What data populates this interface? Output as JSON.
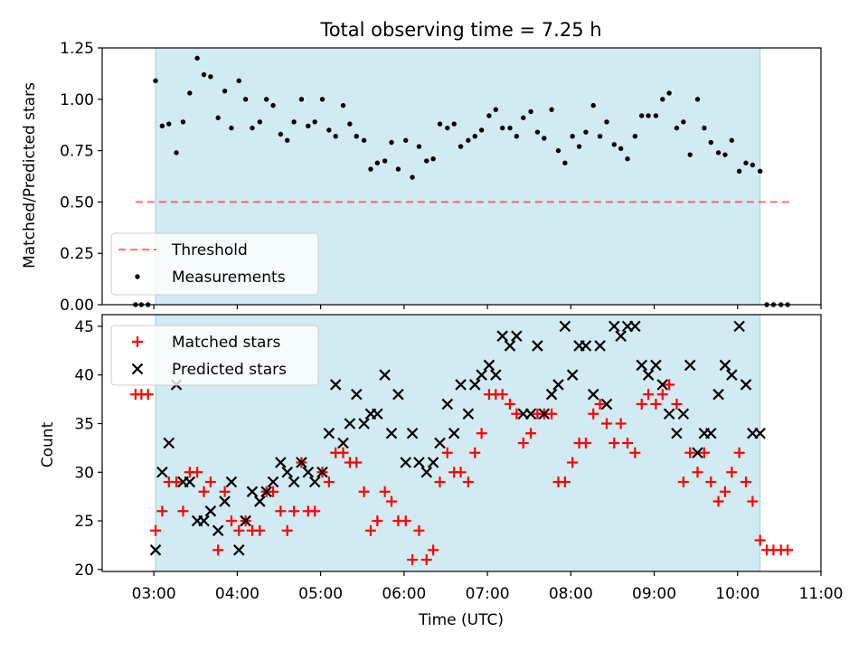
{
  "chart_data": [
    {
      "type": "scatter",
      "title": "Total observing time = 7.25 h",
      "ylabel": "Matched/Predicted stars",
      "xlabel": "",
      "xlim_hours": [
        2.38,
        11.0
      ],
      "ylim": [
        0.0,
        1.25
      ],
      "yticks": [
        "0.00",
        "0.25",
        "0.50",
        "0.75",
        "1.00",
        "1.25"
      ],
      "observing_window_hours": [
        3.02,
        10.27
      ],
      "shade_color": "#add8e6",
      "threshold": {
        "name": "Threshold",
        "value": 0.5,
        "x_range_hours": [
          2.78,
          10.62
        ],
        "color": "#ff0000"
      },
      "legend_placement": "lower-left",
      "series": [
        {
          "name": "Measurements",
          "color": "#000000",
          "x_hours": [
            2.78,
            2.85,
            2.93,
            3.02,
            3.1,
            3.18,
            3.27,
            3.35,
            3.43,
            3.52,
            3.6,
            3.68,
            3.77,
            3.85,
            3.93,
            4.02,
            4.1,
            4.18,
            4.27,
            4.35,
            4.43,
            4.52,
            4.6,
            4.68,
            4.77,
            4.85,
            4.93,
            5.02,
            5.1,
            5.18,
            5.27,
            5.35,
            5.43,
            5.52,
            5.6,
            5.68,
            5.77,
            5.85,
            5.93,
            6.02,
            6.1,
            6.18,
            6.27,
            6.35,
            6.43,
            6.52,
            6.6,
            6.68,
            6.77,
            6.85,
            6.93,
            7.02,
            7.1,
            7.18,
            7.27,
            7.35,
            7.43,
            7.52,
            7.6,
            7.68,
            7.77,
            7.85,
            7.93,
            8.02,
            8.1,
            8.18,
            8.27,
            8.35,
            8.43,
            8.52,
            8.6,
            8.68,
            8.77,
            8.85,
            8.93,
            9.02,
            9.1,
            9.18,
            9.27,
            9.35,
            9.43,
            9.52,
            9.6,
            9.68,
            9.77,
            9.85,
            9.93,
            10.02,
            10.1,
            10.18,
            10.27,
            10.35,
            10.43,
            10.52,
            10.6
          ],
          "y": [
            0.0,
            0.0,
            0.0,
            1.09,
            0.87,
            0.88,
            0.74,
            0.89,
            1.03,
            1.2,
            1.12,
            1.11,
            0.91,
            1.04,
            0.86,
            1.09,
            1.0,
            0.86,
            0.89,
            1.0,
            0.97,
            0.83,
            0.8,
            0.89,
            1.0,
            0.87,
            0.89,
            1.0,
            0.85,
            0.82,
            0.97,
            0.88,
            0.82,
            0.8,
            0.66,
            0.69,
            0.7,
            0.79,
            0.66,
            0.8,
            0.62,
            0.77,
            0.7,
            0.71,
            0.88,
            0.86,
            0.88,
            0.77,
            0.8,
            0.82,
            0.85,
            0.92,
            0.95,
            0.86,
            0.86,
            0.82,
            0.91,
            0.94,
            0.84,
            0.81,
            0.95,
            0.75,
            0.69,
            0.82,
            0.77,
            0.84,
            0.97,
            0.82,
            0.89,
            0.78,
            0.76,
            0.71,
            0.82,
            0.92,
            0.92,
            0.92,
            1.0,
            1.03,
            0.86,
            0.89,
            0.73,
            1.0,
            0.86,
            0.79,
            0.74,
            0.73,
            0.8,
            0.65,
            0.69,
            0.68,
            0.65,
            0.0,
            0.0,
            0.0,
            0.0
          ]
        }
      ]
    },
    {
      "type": "scatter",
      "title": "",
      "ylabel": "Count",
      "xlabel": "Time (UTC)",
      "xlim_hours": [
        2.38,
        11.0
      ],
      "ylim": [
        19.8,
        46.2
      ],
      "yticks": [
        "20",
        "25",
        "30",
        "35",
        "40",
        "45"
      ],
      "xticks": [
        "03:00",
        "04:00",
        "05:00",
        "06:00",
        "07:00",
        "08:00",
        "09:00",
        "10:00",
        "11:00"
      ],
      "xticks_hours": [
        3,
        4,
        5,
        6,
        7,
        8,
        9,
        10,
        11
      ],
      "observing_window_hours": [
        3.02,
        10.27
      ],
      "legend_placement": "upper-left",
      "series": [
        {
          "name": "Matched stars",
          "color": "#ff0000",
          "marker": "+",
          "x_hours": [
            2.78,
            2.85,
            2.93,
            3.02,
            3.1,
            3.18,
            3.27,
            3.35,
            3.43,
            3.52,
            3.6,
            3.68,
            3.77,
            3.85,
            3.93,
            4.02,
            4.1,
            4.18,
            4.27,
            4.35,
            4.43,
            4.52,
            4.6,
            4.68,
            4.77,
            4.85,
            4.93,
            5.02,
            5.1,
            5.18,
            5.27,
            5.35,
            5.43,
            5.52,
            5.6,
            5.68,
            5.77,
            5.85,
            5.93,
            6.02,
            6.1,
            6.18,
            6.27,
            6.35,
            6.43,
            6.52,
            6.6,
            6.68,
            6.77,
            6.85,
            6.93,
            7.02,
            7.1,
            7.18,
            7.27,
            7.35,
            7.43,
            7.52,
            7.6,
            7.68,
            7.77,
            7.85,
            7.93,
            8.02,
            8.1,
            8.18,
            8.27,
            8.35,
            8.43,
            8.52,
            8.6,
            8.68,
            8.77,
            8.85,
            8.93,
            9.02,
            9.1,
            9.18,
            9.27,
            9.35,
            9.43,
            9.52,
            9.6,
            9.68,
            9.77,
            9.85,
            9.93,
            10.02,
            10.1,
            10.18,
            10.27,
            10.35,
            10.43,
            10.52,
            10.6
          ],
          "y": [
            38,
            38,
            38,
            24,
            26,
            29,
            29,
            26,
            30,
            30,
            28,
            29,
            22,
            28,
            25,
            24,
            25,
            24,
            24,
            28,
            28,
            26,
            24,
            26,
            31,
            26,
            26,
            30,
            29,
            32,
            32,
            31,
            31,
            28,
            24,
            25,
            28,
            27,
            25,
            25,
            21,
            24,
            21,
            22,
            29,
            32,
            30,
            30,
            29,
            32,
            34,
            38,
            38,
            38,
            37,
            36,
            33,
            34,
            36,
            36,
            36,
            29,
            29,
            31,
            33,
            33,
            36,
            37,
            35,
            33,
            35,
            33,
            32,
            37,
            38,
            37,
            38,
            39,
            37,
            29,
            32,
            30,
            32,
            29,
            27,
            28,
            30,
            32,
            29,
            27,
            23,
            22,
            22,
            22,
            22
          ]
        },
        {
          "name": "Predicted stars",
          "color": "#000000",
          "marker": "x",
          "x_hours": [
            3.02,
            3.1,
            3.18,
            3.27,
            3.35,
            3.43,
            3.52,
            3.6,
            3.68,
            3.77,
            3.85,
            3.93,
            4.02,
            4.1,
            4.18,
            4.27,
            4.35,
            4.43,
            4.52,
            4.6,
            4.68,
            4.77,
            4.85,
            4.93,
            5.02,
            5.1,
            5.18,
            5.27,
            5.35,
            5.43,
            5.52,
            5.6,
            5.68,
            5.77,
            5.85,
            5.93,
            6.02,
            6.1,
            6.18,
            6.27,
            6.35,
            6.43,
            6.52,
            6.6,
            6.68,
            6.77,
            6.85,
            6.93,
            7.02,
            7.1,
            7.18,
            7.27,
            7.35,
            7.43,
            7.52,
            7.6,
            7.68,
            7.77,
            7.85,
            7.93,
            8.02,
            8.1,
            8.18,
            8.27,
            8.35,
            8.43,
            8.52,
            8.6,
            8.68,
            8.77,
            8.85,
            8.93,
            9.02,
            9.1,
            9.18,
            9.27,
            9.35,
            9.43,
            9.52,
            9.6,
            9.68,
            9.77,
            9.85,
            9.93,
            10.02,
            10.1,
            10.18,
            10.27
          ],
          "y": [
            22,
            30,
            33,
            39,
            29,
            29,
            25,
            25,
            26,
            24,
            27,
            29,
            22,
            25,
            28,
            27,
            28,
            29,
            31,
            30,
            29,
            31,
            30,
            29,
            30,
            34,
            39,
            33,
            35,
            38,
            35,
            36,
            36,
            40,
            34,
            38,
            31,
            34,
            31,
            30,
            31,
            33,
            37,
            34,
            39,
            36,
            39,
            40,
            41,
            40,
            44,
            43,
            44,
            36,
            36,
            43,
            36,
            38,
            39,
            45,
            40,
            43,
            43,
            38,
            43,
            37,
            45,
            44,
            45,
            45,
            41,
            40,
            41,
            39,
            36,
            34,
            36,
            41,
            32,
            34,
            34,
            38,
            41,
            40,
            45,
            39,
            34,
            34
          ]
        }
      ]
    }
  ]
}
